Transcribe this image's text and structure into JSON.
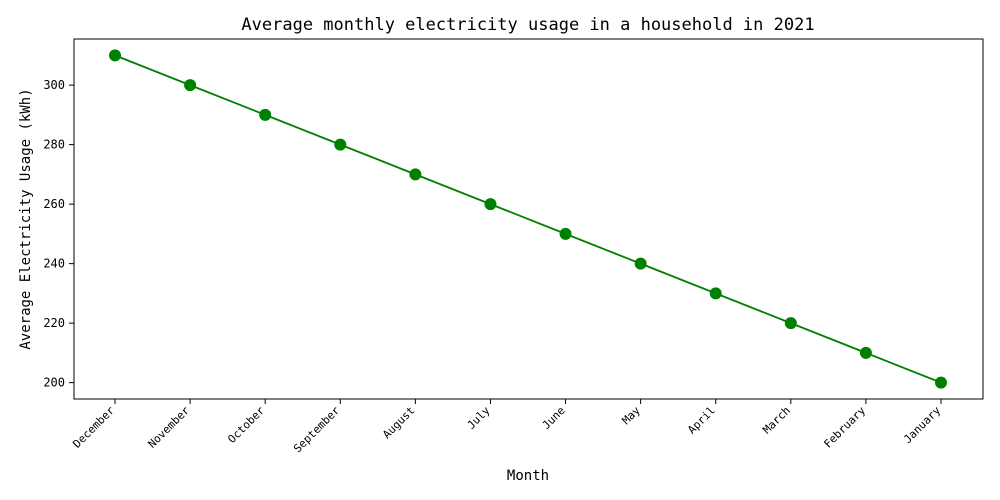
{
  "chart_data": {
    "type": "line",
    "title": "Average monthly electricity usage in a household in 2021",
    "xlabel": "Month",
    "ylabel": "Average Electricity Usage (kWh)",
    "categories": [
      "December",
      "November",
      "October",
      "September",
      "August",
      "July",
      "June",
      "May",
      "April",
      "March",
      "February",
      "January"
    ],
    "values": [
      310,
      300,
      290,
      280,
      270,
      260,
      250,
      240,
      230,
      220,
      210,
      200
    ],
    "ylim": [
      194.5,
      315.5
    ],
    "yticks": [
      200,
      220,
      240,
      260,
      280,
      300
    ],
    "ytick_labels": [
      "200",
      "220",
      "240",
      "260",
      "280",
      "300"
    ],
    "grid": false,
    "line_color": "#008000",
    "marker": "circle"
  }
}
